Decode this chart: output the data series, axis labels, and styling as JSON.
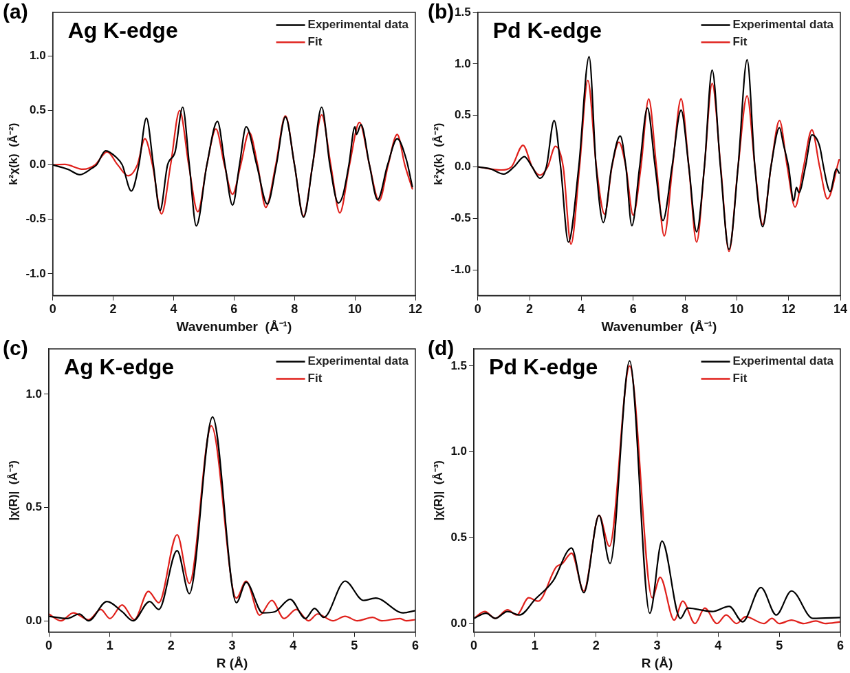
{
  "chart_data": [
    {
      "type": "line",
      "title": "Ag K-edge",
      "xlabel": "Wavenumber  (Å⁻¹)",
      "ylabel": "k²χ(k)  (Å⁻²)",
      "annotations": [
        "(a)"
      ],
      "legend": "top right",
      "grid": false,
      "marker": "none",
      "line_style": "solid",
      "xlim": [
        0,
        12
      ],
      "xticks": [
        0,
        2,
        4,
        6,
        8,
        10,
        12
      ],
      "ylim": [
        -1.2,
        1.4
      ],
      "yticks": [
        {
          "value": -1,
          "label": "-1.0"
        },
        -0.5,
        {
          "value": 0,
          "label": "0.0"
        },
        0.5,
        {
          "value": 1,
          "label": "1.0"
        }
      ],
      "series": [
        {
          "name": "Experimental data",
          "color": "#000000",
          "x": [
            0,
            0.5,
            0.9,
            1.3,
            1.45,
            1.75,
            2.1,
            2.3,
            2.6,
            2.85,
            3.1,
            3.33,
            3.55,
            3.8,
            4.05,
            4.3,
            4.52,
            4.75,
            5.1,
            5.45,
            5.7,
            5.95,
            6.18,
            6.4,
            6.75,
            7.1,
            7.4,
            7.7,
            8.0,
            8.3,
            8.6,
            8.9,
            9.17,
            9.45,
            9.6,
            9.8,
            10.0,
            10.05,
            10.2,
            10.48,
            10.75,
            11.08,
            11.4,
            11.7,
            11.9
          ],
          "values": [
            0,
            -0.04,
            -0.09,
            -0.03,
            0,
            0.13,
            0.07,
            0,
            -0.24,
            0,
            0.43,
            0,
            -0.42,
            0,
            0.12,
            0.53,
            0,
            -0.56,
            0,
            0.4,
            0,
            -0.37,
            0,
            0.35,
            0,
            -0.36,
            0,
            0.44,
            0,
            -0.48,
            0,
            0.53,
            0,
            -0.35,
            -0.28,
            0,
            0.35,
            0.28,
            0.37,
            0,
            -0.32,
            0,
            0.24,
            0.05,
            -0.2
          ]
        },
        {
          "name": "Fit",
          "color": "#e0201b",
          "x": [
            0,
            0.4,
            1.0,
            1.4,
            1.8,
            2.15,
            2.5,
            2.8,
            3.05,
            3.3,
            3.6,
            3.9,
            4.2,
            4.5,
            4.8,
            5.1,
            5.4,
            5.68,
            5.95,
            6.22,
            6.5,
            6.78,
            7.05,
            7.38,
            7.7,
            8.0,
            8.3,
            8.6,
            8.9,
            9.2,
            9.5,
            9.82,
            10.15,
            10.48,
            10.8,
            11.1,
            11.4,
            11.65,
            11.9
          ],
          "values": [
            0,
            0.005,
            -0.04,
            0,
            0.12,
            0,
            -0.1,
            0,
            0.24,
            0,
            -0.45,
            0,
            0.5,
            0,
            -0.43,
            0,
            0.33,
            0,
            -0.27,
            0,
            0.3,
            0,
            -0.39,
            0,
            0.45,
            0,
            -0.47,
            0,
            0.46,
            0,
            -0.44,
            0,
            0.39,
            0,
            -0.33,
            0,
            0.28,
            0,
            -0.22
          ]
        }
      ]
    },
    {
      "type": "line",
      "title": "Pd K-edge",
      "xlabel": "Wavenumber  (Å⁻¹)",
      "ylabel": "k²χ(k)  (Å⁻²)",
      "annotations": [
        "(b)"
      ],
      "legend": "top right",
      "grid": false,
      "marker": "none",
      "line_style": "solid",
      "xlim": [
        0,
        14
      ],
      "xticks": [
        0,
        2,
        4,
        6,
        8,
        10,
        12,
        14
      ],
      "ylim": [
        -1.25,
        1.5
      ],
      "yticks": [
        {
          "value": -1,
          "label": "-1.0"
        },
        -0.5,
        {
          "value": 0,
          "label": "0.0"
        },
        0.5,
        {
          "value": 1,
          "label": "1.0"
        },
        1.5
      ],
      "series": [
        {
          "name": "Experimental data",
          "color": "#000000",
          "x": [
            0,
            0.5,
            1.0,
            1.4,
            1.8,
            2.1,
            2.4,
            2.65,
            2.95,
            3.2,
            3.5,
            3.9,
            4.3,
            4.57,
            4.85,
            5.17,
            5.5,
            5.72,
            5.95,
            6.25,
            6.55,
            6.85,
            7.15,
            7.5,
            7.85,
            8.15,
            8.45,
            8.75,
            9.05,
            9.37,
            9.7,
            10.05,
            10.4,
            10.7,
            11.0,
            11.32,
            11.65,
            11.8,
            12.0,
            12.2,
            12.3,
            12.4,
            12.65,
            12.9,
            13.2,
            13.35,
            13.5,
            13.6,
            13.85,
            13.95
          ],
          "values": [
            0,
            -0.02,
            -0.07,
            0,
            0.1,
            0,
            -0.11,
            0,
            0.45,
            0,
            -0.73,
            0,
            1.07,
            0,
            -0.54,
            0,
            0.3,
            0,
            -0.57,
            0,
            0.57,
            0,
            -0.52,
            0,
            0.55,
            0,
            -0.63,
            0,
            0.94,
            0,
            -0.8,
            0,
            1.04,
            0,
            -0.58,
            0,
            0.38,
            0.22,
            0,
            -0.33,
            -0.2,
            -0.25,
            0,
            0.31,
            0.2,
            0,
            -0.18,
            -0.24,
            -0.02,
            -0.06
          ]
        },
        {
          "name": "Fit",
          "color": "#e0201b",
          "x": [
            0,
            0.9,
            1.3,
            1.75,
            2.1,
            2.4,
            2.7,
            3.0,
            3.3,
            3.6,
            3.93,
            4.25,
            4.58,
            4.9,
            5.18,
            5.45,
            5.72,
            6.0,
            6.3,
            6.6,
            6.9,
            7.2,
            7.52,
            7.85,
            8.15,
            8.45,
            8.75,
            9.05,
            9.38,
            9.7,
            10.05,
            10.4,
            10.7,
            11.0,
            11.32,
            11.65,
            11.95,
            12.25,
            12.58,
            12.9,
            13.2,
            13.5,
            13.95
          ],
          "values": [
            0,
            -0.03,
            0,
            0.21,
            0,
            -0.08,
            0,
            0.2,
            0,
            -0.75,
            0,
            0.84,
            0,
            -0.46,
            0,
            0.24,
            0,
            -0.47,
            0,
            0.66,
            0,
            -0.67,
            0,
            0.66,
            0,
            -0.73,
            0,
            0.81,
            0,
            -0.82,
            0,
            0.69,
            0,
            -0.56,
            0,
            0.45,
            0,
            -0.39,
            0,
            0.36,
            0,
            -0.31,
            0.07
          ]
        }
      ]
    },
    {
      "type": "line",
      "title": "Ag K-edge",
      "xlabel": "R (Å)",
      "ylabel": "|χ(R)|  (Å⁻³)",
      "annotations": [
        "(c)"
      ],
      "legend": "top right",
      "grid": false,
      "marker": "none",
      "line_style": "solid",
      "xlim": [
        0,
        6
      ],
      "xticks": [
        0,
        1,
        2,
        3,
        4,
        5,
        6
      ],
      "ylim": [
        -0.05,
        1.2
      ],
      "yticks": [
        {
          "value": 0,
          "label": "0.0"
        },
        0.5,
        {
          "value": 1,
          "label": "1.0"
        }
      ],
      "series": [
        {
          "name": "Experimental data",
          "color": "#000000",
          "x": [
            0,
            0.3,
            0.5,
            0.65,
            0.95,
            1.2,
            1.38,
            1.65,
            1.8,
            2.1,
            2.3,
            2.68,
            3.07,
            3.23,
            3.5,
            3.7,
            3.95,
            4.2,
            4.35,
            4.5,
            4.85,
            5.15,
            5.35,
            5.8,
            6.0
          ],
          "values": [
            0.02,
            0.01,
            0.03,
            0.0,
            0.085,
            0.04,
            0.0,
            0.085,
            0.05,
            0.31,
            0.12,
            0.9,
            0.08,
            0.17,
            0.035,
            0.04,
            0.095,
            0.01,
            0.055,
            0.015,
            0.175,
            0.09,
            0.1,
            0.035,
            0.045
          ]
        },
        {
          "name": "Fit",
          "color": "#e0201b",
          "x": [
            0,
            0.2,
            0.4,
            0.65,
            0.85,
            1.0,
            1.2,
            1.4,
            1.63,
            1.8,
            2.1,
            2.3,
            2.66,
            3.07,
            3.23,
            3.45,
            3.65,
            3.85,
            4.05,
            4.25,
            4.4,
            4.65,
            4.85,
            5.05,
            5.3,
            5.45,
            5.75,
            5.85,
            6.0
          ],
          "values": [
            0.03,
            0.0,
            0.035,
            0.005,
            0.05,
            0.01,
            0.07,
            0.005,
            0.13,
            0.08,
            0.38,
            0.165,
            0.86,
            0.1,
            0.175,
            0.025,
            0.09,
            0.01,
            0.05,
            0.0,
            0.03,
            0.0,
            0.02,
            0.0,
            0.015,
            0.0,
            0.01,
            0.0,
            0.005
          ]
        }
      ]
    },
    {
      "type": "line",
      "title": "Pd K-edge",
      "xlabel": "R (Å)",
      "ylabel": "|χ(R)|  (Å⁻³)",
      "annotations": [
        "(d)"
      ],
      "legend": "top right",
      "grid": false,
      "marker": "none",
      "line_style": "solid",
      "xlim": [
        0,
        6
      ],
      "xticks": [
        0,
        1,
        2,
        3,
        4,
        5,
        6
      ],
      "ylim": [
        -0.05,
        1.6
      ],
      "yticks": [
        {
          "value": 0,
          "label": "0.0"
        },
        0.5,
        {
          "value": 1,
          "label": "1.0"
        },
        1.5
      ],
      "series": [
        {
          "name": "Experimental data",
          "color": "#000000",
          "x": [
            0,
            0.2,
            0.35,
            0.55,
            0.75,
            1.0,
            1.3,
            1.6,
            1.8,
            2.05,
            2.23,
            2.55,
            2.88,
            3.08,
            3.38,
            3.5,
            3.9,
            4.18,
            4.4,
            4.7,
            4.95,
            5.2,
            5.55,
            6.0
          ],
          "values": [
            0.03,
            0.06,
            0.03,
            0.07,
            0.05,
            0.14,
            0.25,
            0.44,
            0.18,
            0.63,
            0.35,
            1.53,
            0.06,
            0.48,
            0.03,
            0.09,
            0.07,
            0.1,
            0.01,
            0.21,
            0.05,
            0.19,
            0.03,
            0.035
          ]
        },
        {
          "name": "Fit",
          "color": "#e0201b",
          "x": [
            0,
            0.18,
            0.35,
            0.55,
            0.7,
            0.9,
            1.05,
            1.35,
            1.45,
            1.6,
            1.8,
            2.05,
            2.22,
            2.55,
            2.92,
            3.05,
            3.28,
            3.42,
            3.62,
            3.78,
            3.98,
            4.13,
            4.3,
            4.45,
            4.75,
            4.88,
            5.0,
            5.2,
            5.4,
            5.6,
            5.75,
            6.0
          ],
          "values": [
            0.03,
            0.07,
            0.03,
            0.08,
            0.05,
            0.15,
            0.13,
            0.33,
            0.35,
            0.41,
            0.19,
            0.63,
            0.45,
            1.5,
            0.15,
            0.27,
            0.02,
            0.13,
            0.0,
            0.09,
            0.0,
            0.05,
            0.0,
            0.04,
            0.0,
            0.03,
            0.0,
            0.02,
            0.0,
            0.015,
            0.0,
            0.01
          ]
        }
      ]
    }
  ]
}
